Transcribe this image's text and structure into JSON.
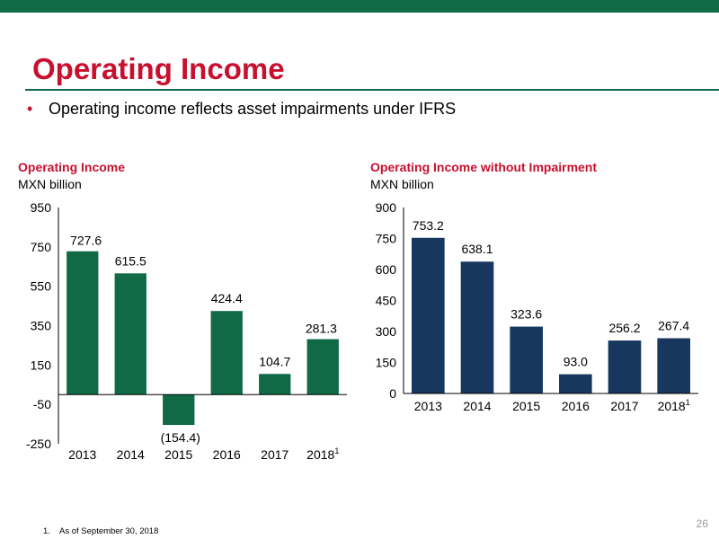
{
  "slide": {
    "title": "Operating Income",
    "bullet": "Operating income reflects asset impairments under IFRS",
    "footnote_number": "1.",
    "footnote_text": "As of September 30, 2018",
    "page_number": "26",
    "colors": {
      "accent_red": "#c8102e",
      "brand_green": "#0f6a45",
      "navy": "#17375e"
    }
  },
  "chart_data": [
    {
      "type": "bar",
      "title": "Operating Income",
      "ylabel": "MXN billion",
      "categories": [
        "2013",
        "2014",
        "2015",
        "2016",
        "2017",
        "2018"
      ],
      "category_superscripts": [
        "",
        "",
        "",
        "",
        "",
        "1"
      ],
      "values": [
        727.6,
        615.5,
        -154.4,
        424.4,
        104.7,
        281.3
      ],
      "data_labels": [
        "727.6",
        "615.5",
        "(154.4)",
        "424.4",
        "104.7",
        "281.3"
      ],
      "yticks": [
        950,
        750,
        550,
        350,
        150,
        -50,
        -250
      ],
      "ylim": [
        -250,
        950
      ],
      "color": "#0f6a45",
      "grid": false
    },
    {
      "type": "bar",
      "title": "Operating Income without Impairment",
      "ylabel": "MXN billion",
      "categories": [
        "2013",
        "2014",
        "2015",
        "2016",
        "2017",
        "2018"
      ],
      "category_superscripts": [
        "",
        "",
        "",
        "",
        "",
        "1"
      ],
      "values": [
        753.2,
        638.1,
        323.6,
        93.0,
        256.2,
        267.4
      ],
      "data_labels": [
        "753.2",
        "638.1",
        "323.6",
        "93.0",
        "256.2",
        "267.4"
      ],
      "yticks": [
        900,
        750,
        600,
        450,
        300,
        150,
        0
      ],
      "ylim": [
        0,
        900
      ],
      "color": "#17375e",
      "grid": false
    }
  ]
}
